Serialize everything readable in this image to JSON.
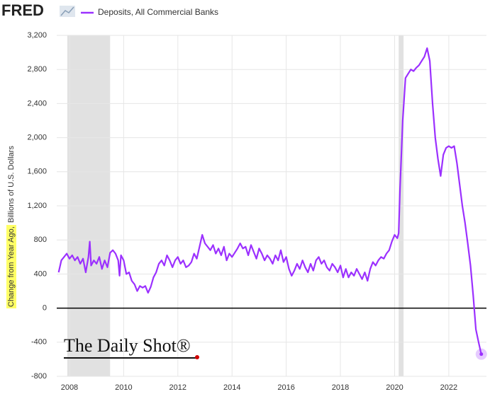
{
  "chart_data": {
    "type": "line",
    "logo": "FRED",
    "ylabel": [
      "Change from Year Ago,",
      "Billions of U.S. Dollars"
    ],
    "annotation": "The Daily Shot®",
    "xlim": [
      2007.53,
      2023.39
    ],
    "xticks": [
      2008,
      2010,
      2012,
      2014,
      2016,
      2018,
      2020,
      2022
    ],
    "ylim": [
      -800,
      3200
    ],
    "yticks": [
      -800,
      -400,
      0,
      400,
      800,
      {
        "value": 1200,
        "label": "1,200"
      },
      {
        "value": 1600,
        "label": "1,600"
      },
      {
        "value": 2000,
        "label": "2,000"
      },
      {
        "value": 2400,
        "label": "2,400"
      },
      {
        "value": 2800,
        "label": "2,800"
      },
      {
        "value": 3200,
        "label": "3,200"
      }
    ],
    "grid": true,
    "shaded_ranges": [
      [
        2007.92,
        2009.5
      ],
      [
        2020.15,
        2020.33
      ]
    ],
    "series": [
      {
        "name": "Deposits, All Commercial Banks",
        "color": "#9b30ff",
        "x": [
          2007.6,
          2007.7,
          2007.8,
          2007.9,
          2008.0,
          2008.1,
          2008.2,
          2008.3,
          2008.4,
          2008.5,
          2008.6,
          2008.7,
          2008.75,
          2008.8,
          2008.9,
          2009.0,
          2009.1,
          2009.2,
          2009.3,
          2009.4,
          2009.5,
          2009.6,
          2009.7,
          2009.8,
          2009.85,
          2009.9,
          2010.0,
          2010.1,
          2010.2,
          2010.3,
          2010.4,
          2010.5,
          2010.6,
          2010.7,
          2010.8,
          2010.9,
          2011.0,
          2011.1,
          2011.2,
          2011.3,
          2011.4,
          2011.5,
          2011.6,
          2011.7,
          2011.8,
          2011.9,
          2012.0,
          2012.1,
          2012.2,
          2012.3,
          2012.4,
          2012.5,
          2012.6,
          2012.7,
          2012.8,
          2012.9,
          2013.0,
          2013.1,
          2013.2,
          2013.3,
          2013.4,
          2013.5,
          2013.6,
          2013.7,
          2013.8,
          2013.9,
          2014.0,
          2014.2,
          2014.3,
          2014.4,
          2014.5,
          2014.6,
          2014.7,
          2014.8,
          2014.9,
          2015.0,
          2015.1,
          2015.2,
          2015.3,
          2015.4,
          2015.5,
          2015.6,
          2015.7,
          2015.8,
          2015.9,
          2016.0,
          2016.1,
          2016.2,
          2016.3,
          2016.4,
          2016.5,
          2016.6,
          2016.7,
          2016.8,
          2016.9,
          2017.0,
          2017.1,
          2017.2,
          2017.3,
          2017.4,
          2017.5,
          2017.6,
          2017.7,
          2017.8,
          2017.9,
          2018.0,
          2018.1,
          2018.2,
          2018.3,
          2018.4,
          2018.5,
          2018.6,
          2018.7,
          2018.8,
          2018.9,
          2019.0,
          2019.1,
          2019.2,
          2019.3,
          2019.4,
          2019.5,
          2019.6,
          2019.7,
          2019.8,
          2019.9,
          2020.0,
          2020.1,
          2020.15,
          2020.2,
          2020.3,
          2020.4,
          2020.5,
          2020.6,
          2020.7,
          2020.8,
          2020.9,
          2021.0,
          2021.1,
          2021.2,
          2021.3,
          2021.4,
          2021.5,
          2021.6,
          2021.7,
          2021.8,
          2021.9,
          2022.0,
          2022.1,
          2022.2,
          2022.3,
          2022.4,
          2022.5,
          2022.6,
          2022.7,
          2022.8,
          2022.9,
          2023.0,
          2023.1,
          2023.2
        ],
        "values": [
          420,
          560,
          600,
          640,
          580,
          620,
          560,
          600,
          520,
          580,
          420,
          600,
          780,
          500,
          560,
          520,
          600,
          460,
          560,
          480,
          650,
          680,
          640,
          560,
          380,
          620,
          560,
          400,
          420,
          320,
          280,
          200,
          260,
          240,
          260,
          180,
          250,
          360,
          420,
          520,
          560,
          500,
          620,
          560,
          480,
          560,
          600,
          520,
          560,
          480,
          500,
          540,
          640,
          580,
          720,
          860,
          760,
          720,
          680,
          740,
          640,
          700,
          620,
          720,
          560,
          640,
          600,
          700,
          760,
          700,
          720,
          620,
          740,
          660,
          580,
          700,
          640,
          560,
          620,
          580,
          520,
          620,
          560,
          680,
          540,
          600,
          460,
          380,
          440,
          520,
          460,
          560,
          480,
          420,
          520,
          440,
          560,
          600,
          520,
          560,
          480,
          440,
          520,
          480,
          420,
          500,
          360,
          460,
          360,
          420,
          380,
          460,
          400,
          340,
          420,
          320,
          460,
          540,
          500,
          560,
          600,
          580,
          640,
          680,
          780,
          860,
          820,
          880,
          1400,
          2200,
          2700,
          2750,
          2800,
          2780,
          2820,
          2850,
          2900,
          2950,
          3050,
          2900,
          2400,
          2000,
          1750,
          1550,
          1800,
          1880,
          1900,
          1880,
          1900,
          1700,
          1450,
          1200,
          1000,
          760,
          500,
          150,
          -250,
          -400,
          -540
        ]
      }
    ]
  }
}
